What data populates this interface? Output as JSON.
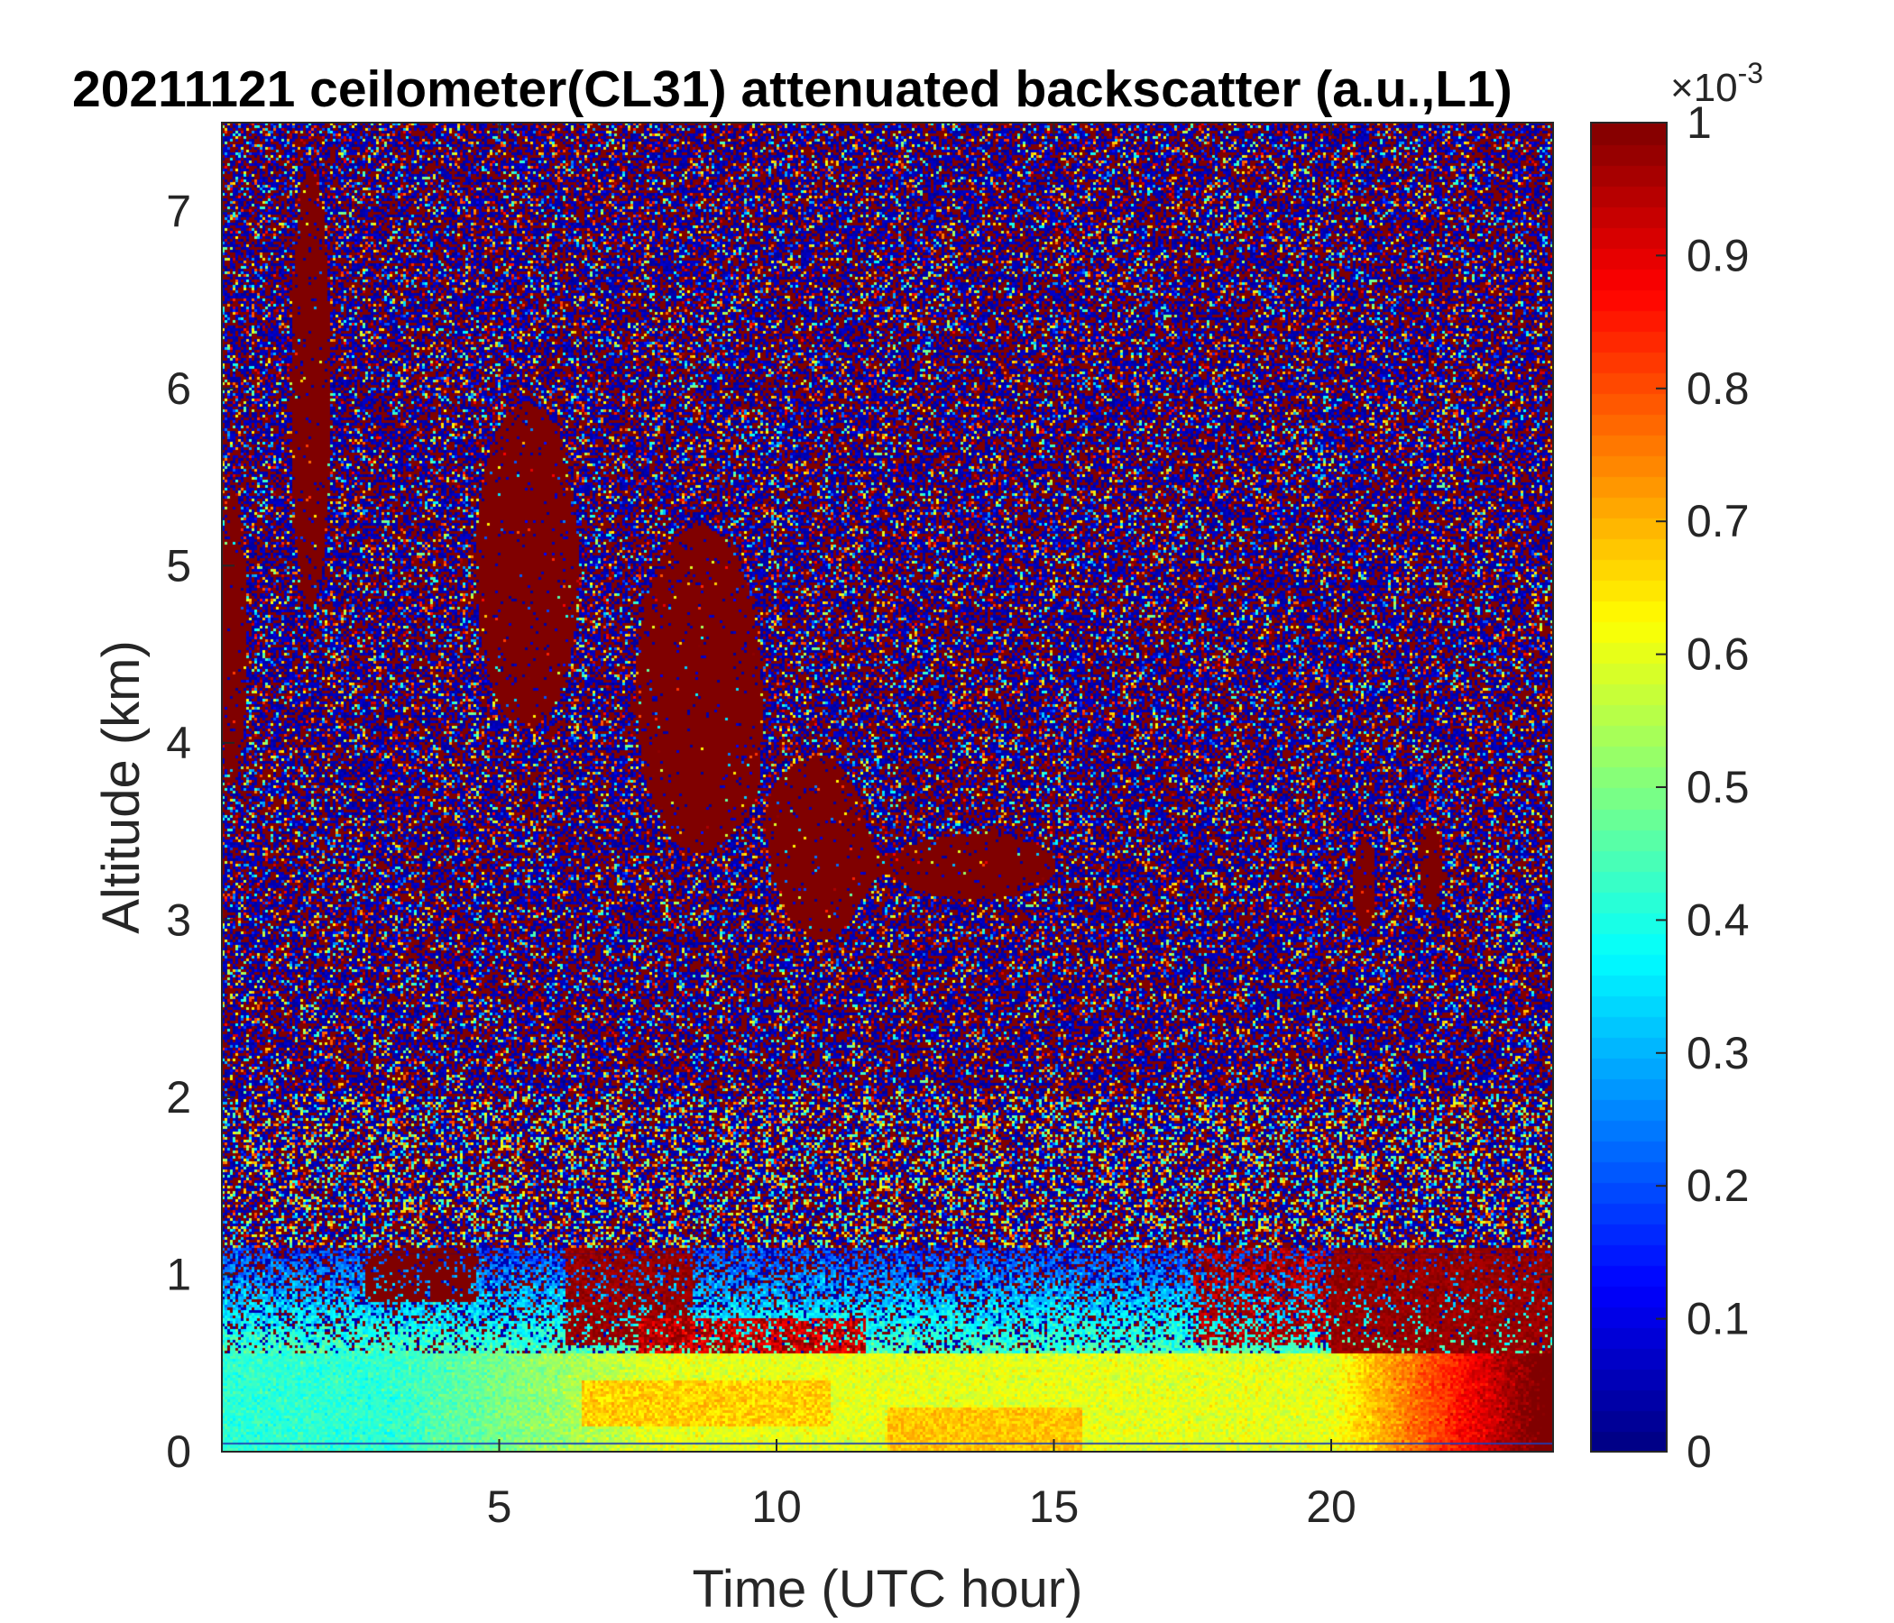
{
  "chart_data": {
    "type": "heatmap",
    "title": "20211121 ceilometer(CL31) attenuated backscatter (a.u.,L1)",
    "xlabel": "Time (UTC hour)",
    "ylabel": "Altitude (km)",
    "xlim": [
      0,
      24
    ],
    "ylim": [
      0,
      7.5
    ],
    "xticks": [
      5,
      10,
      15,
      20
    ],
    "yticks": [
      0,
      1,
      2,
      3,
      4,
      5,
      6,
      7
    ],
    "colorbar": {
      "colormap": "jet",
      "clim": [
        0,
        0.001
      ],
      "exponent_label": "×10",
      "exponent_power": "-3",
      "ticks": [
        0,
        0.1,
        0.2,
        0.3,
        0.4,
        0.5,
        0.6,
        0.7,
        0.8,
        0.9,
        1
      ],
      "tick_labels": [
        "0",
        "0.1",
        "0.2",
        "0.3",
        "0.4",
        "0.5",
        "0.6",
        "0.7",
        "0.8",
        "0.9",
        "1"
      ],
      "low_color": "#00008f",
      "high_color": "#800000"
    },
    "features": [
      {
        "name": "surface aerosol layer",
        "x": [
          0,
          24
        ],
        "y": [
          0,
          0.5
        ],
        "value_range": [
          0.35,
          0.75
        ]
      },
      {
        "name": "boundary layer top",
        "x": [
          0,
          19
        ],
        "y": [
          0.5,
          1.1
        ],
        "value_range": [
          0.25,
          0.6
        ]
      },
      {
        "name": "cloud layer early",
        "x": [
          2.5,
          4.5
        ],
        "y": [
          0.8,
          1.2
        ],
        "value_range": [
          1,
          1
        ]
      },
      {
        "name": "cloud layer morning",
        "x": [
          6,
          11.5
        ],
        "y": [
          0.5,
          1.3
        ],
        "value_range": [
          0.9,
          1
        ]
      },
      {
        "name": "cloud layer late",
        "x": [
          20,
          24
        ],
        "y": [
          0.2,
          1.2
        ],
        "value_range": [
          0.9,
          1
        ]
      },
      {
        "name": "descending cloud band",
        "x": [
          4,
          15
        ],
        "y": [
          3,
          6.2
        ],
        "value_range": [
          1,
          1
        ]
      }
    ]
  }
}
